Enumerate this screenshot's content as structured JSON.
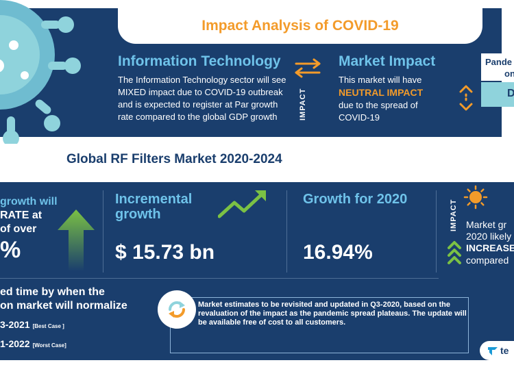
{
  "header": {
    "title": "Impact Analysis of COVID-19"
  },
  "sector": {
    "heading": "Information Technology",
    "text": "The Information Technology sector will see MIXED impact due to COVID-19 outbreak and is expected to register at Par growth rate compared to the global GDP growth"
  },
  "impact_label": "IMPACT",
  "market_impact": {
    "heading": "Market Impact",
    "line1": "This market will have",
    "highlight": "NEUTRAL IMPACT",
    "line2": "due to the spread of COVID-19"
  },
  "pandemic": {
    "line1": "Pande",
    "line2": "on",
    "value": "D"
  },
  "market_title": "Global RF Filters Market 2020-2024",
  "growth_panel": {
    "line1": "growth will",
    "line2": "RATE at",
    "line3": "of over",
    "big": "%"
  },
  "incremental": {
    "heading": "Incremental growth",
    "value": "$ 15.73 bn"
  },
  "growth_2020": {
    "heading": "Growth for 2020",
    "value": "16.94%"
  },
  "market_growth": {
    "line1": "Market gr",
    "line2": "2020 likely",
    "line3": "INCREASE",
    "line4": "compared"
  },
  "normalize": {
    "line1": "ed time by when the",
    "line2": "on market will normalize",
    "best_year": "3-2021",
    "best_tag": "[Best Case ]",
    "worst_year": "1-2022",
    "worst_tag": "[Worst Case]"
  },
  "note": "Market estimates to be revisited and updated in Q3-2020, based on the revaluation of the impact as the pandemic spread plateaus. The update will be available free of cost to all customers.",
  "brand": {
    "text": "te"
  },
  "colors": {
    "navy": "#1a3e6d",
    "light_blue": "#6fc3ea",
    "orange": "#f39b2a",
    "green": "#7bc144",
    "teal": "#8fd3dc"
  }
}
